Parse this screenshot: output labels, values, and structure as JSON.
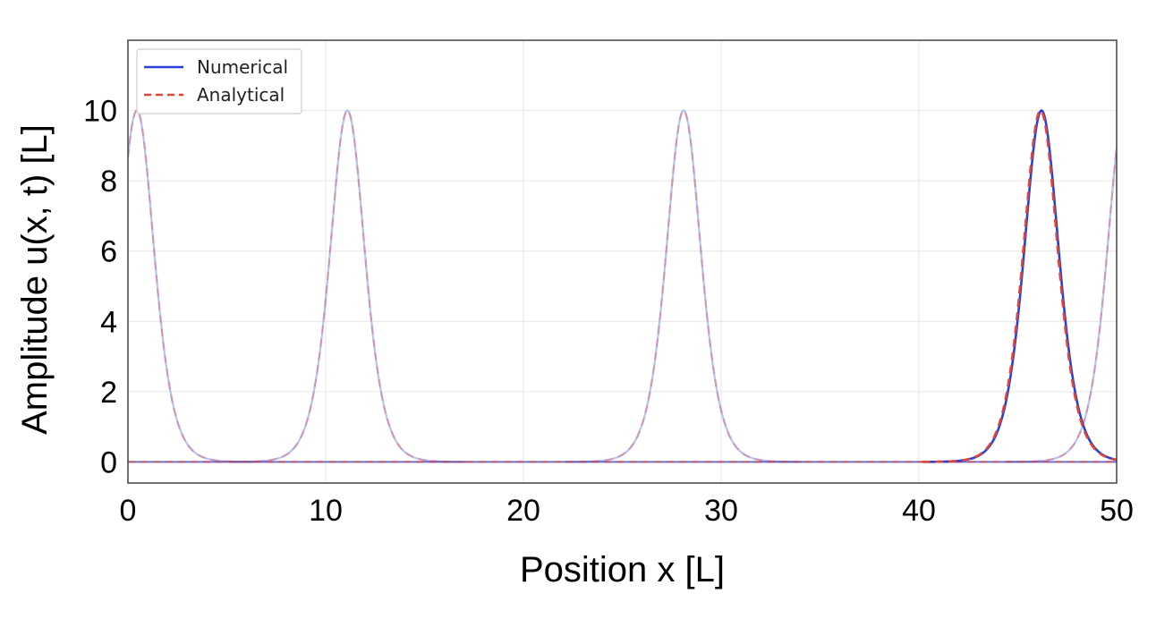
{
  "chart_data": {
    "type": "line",
    "title": "",
    "xlabel": "Position x [L]",
    "ylabel": "Amplitude u(x, t) [L]",
    "xlim": [
      0,
      50
    ],
    "ylim": [
      -0.6,
      12
    ],
    "xticks": [
      0,
      10,
      20,
      30,
      40,
      50
    ],
    "yticks": [
      0,
      2,
      4,
      6,
      8,
      10
    ],
    "grid": true,
    "legend_position": "top-left",
    "peak_amplitude": 10,
    "series": [
      {
        "name": "Numerical",
        "style": "solid",
        "color": "#2a3fd6",
        "peaks": [
          {
            "center": 46.2,
            "amplitude": 10,
            "emphasis": "strong"
          },
          {
            "center": 0.45,
            "amplitude": 10,
            "emphasis": "faint"
          },
          {
            "center": 11.1,
            "amplitude": 10,
            "emphasis": "faint"
          },
          {
            "center": 28.1,
            "amplitude": 10,
            "emphasis": "faint"
          },
          {
            "center": 50.4,
            "amplitude": 10,
            "emphasis": "faint"
          }
        ]
      },
      {
        "name": "Analytical",
        "style": "dashed",
        "color": "#e0443a",
        "peaks": [
          {
            "center": 46.15,
            "amplitude": 10,
            "emphasis": "strong"
          },
          {
            "center": 0.45,
            "amplitude": 10,
            "emphasis": "faint"
          },
          {
            "center": 11.1,
            "amplitude": 10,
            "emphasis": "faint"
          },
          {
            "center": 28.1,
            "amplitude": 10,
            "emphasis": "faint"
          },
          {
            "center": 50.4,
            "amplitude": 10,
            "emphasis": "faint"
          }
        ]
      }
    ]
  }
}
